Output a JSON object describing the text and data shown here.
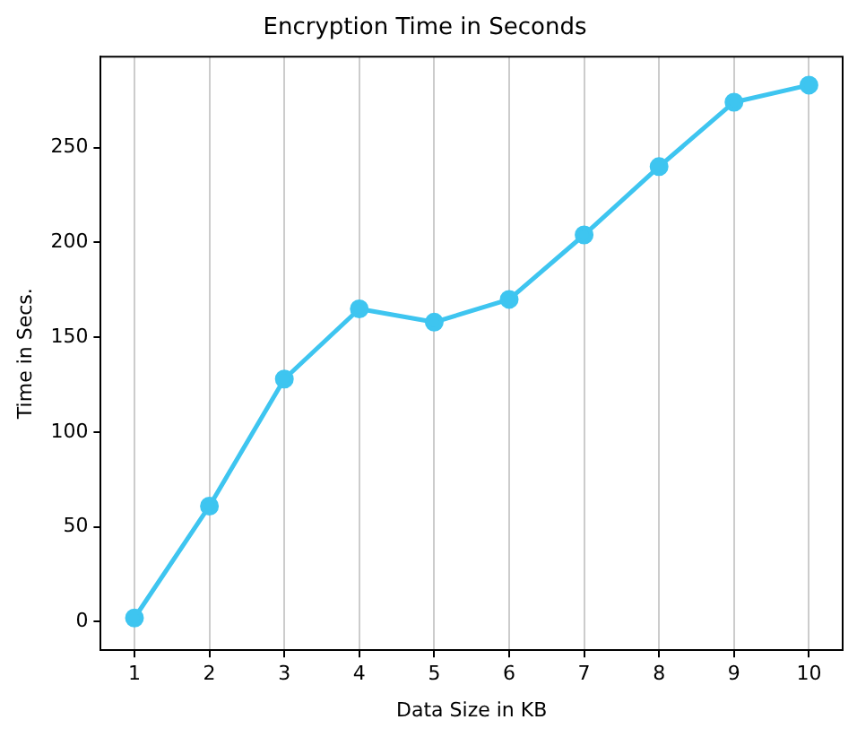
{
  "chart_data": {
    "type": "line",
    "title": "Encryption Time in Seconds",
    "xlabel": "Data Size in KB",
    "ylabel": "Time in Secs.",
    "x": [
      1,
      2,
      3,
      4,
      5,
      6,
      7,
      8,
      9,
      10
    ],
    "series": [
      {
        "color": "#3ec5f0",
        "values": [
          2,
          61,
          128,
          165,
          158,
          170,
          204,
          240,
          274,
          283
        ]
      }
    ],
    "xlim": [
      0.55,
      10.45
    ],
    "ylim": [
      -15,
      298
    ],
    "xticks": [
      1,
      2,
      3,
      4,
      5,
      6,
      7,
      8,
      9,
      10
    ],
    "yticks": [
      0,
      50,
      100,
      150,
      200,
      250
    ],
    "grid": "x",
    "marker": "circle",
    "line_style": "solid",
    "legend": false
  }
}
